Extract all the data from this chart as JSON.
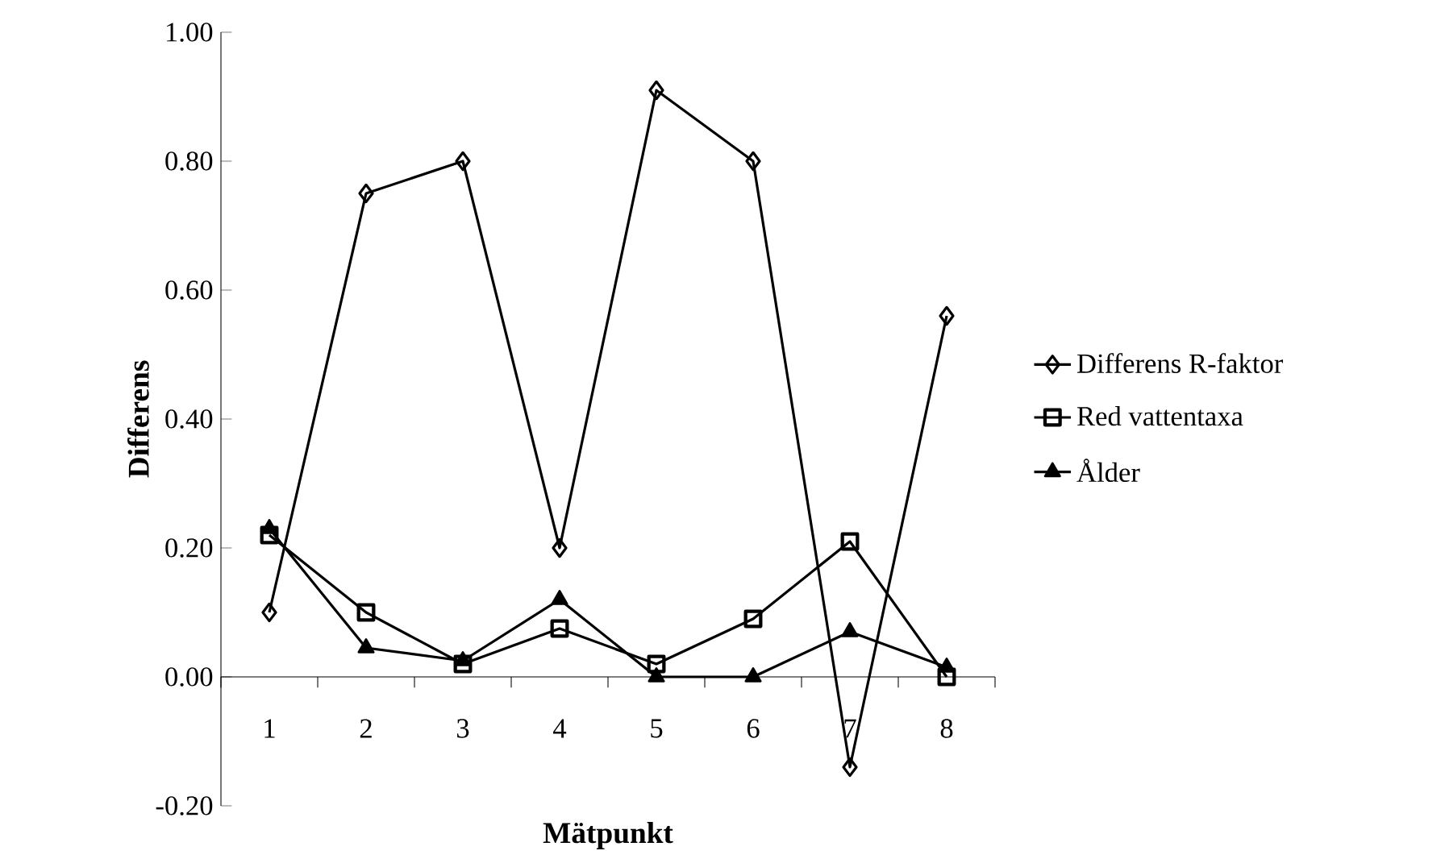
{
  "chart_data": {
    "type": "line",
    "xlabel": "Mätpunkt",
    "ylabel": "Differens",
    "categories": [
      "1",
      "2",
      "3",
      "4",
      "5",
      "6",
      "7",
      "8"
    ],
    "ylim": [
      -0.2,
      1.0
    ],
    "yticks": [
      {
        "value": -0.2,
        "label": "-0.20"
      },
      {
        "value": 0,
        "label": "0.00"
      },
      {
        "value": 0.2,
        "label": "0.20"
      },
      {
        "value": 0.4,
        "label": "0.40"
      },
      {
        "value": 0.6,
        "label": "0.60"
      },
      {
        "value": 0.8,
        "label": "0.80"
      },
      {
        "value": 1.0,
        "label": "1.00"
      }
    ],
    "legend": "right",
    "series": [
      {
        "name": "Differens R-faktor",
        "color": "#000000",
        "marker": "diamond",
        "values": [
          0.1,
          0.75,
          0.8,
          0.2,
          0.91,
          0.8,
          -0.14,
          0.56
        ]
      },
      {
        "name": "Red vattentaxa",
        "color": "#000000",
        "marker": "square",
        "values": [
          0.22,
          0.1,
          0.02,
          0.075,
          0.02,
          0.09,
          0.21,
          0.0
        ]
      },
      {
        "name": "Ålder",
        "color": "#000000",
        "marker": "triangle",
        "values": [
          0.23,
          0.045,
          0.025,
          0.12,
          0.0,
          0.0,
          0.07,
          0.015
        ]
      }
    ]
  }
}
